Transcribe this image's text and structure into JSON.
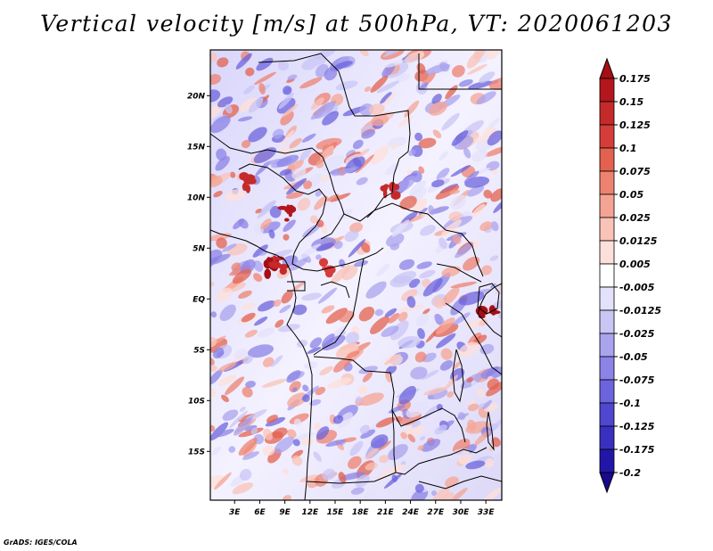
{
  "title": "Vertical velocity [m/s] at 500hPa, VT: 2020061203",
  "credit": "GrADS: IGES/COLA",
  "map": {
    "lat_labels": [
      "20N",
      "15N",
      "10N",
      "5N",
      "EQ",
      "5S",
      "10S",
      "15S"
    ],
    "lon_labels": [
      "3E",
      "6E",
      "9E",
      "12E",
      "15E",
      "18E",
      "21E",
      "24E",
      "27E",
      "30E",
      "33E"
    ],
    "lat_values": [
      20,
      15,
      10,
      5,
      0,
      -5,
      -10,
      -15
    ],
    "lon_values": [
      3,
      6,
      9,
      12,
      15,
      18,
      21,
      24,
      27,
      30,
      33
    ],
    "extent": {
      "lon_min": 0.1,
      "lon_max": 34.9,
      "lat_min": -19.8,
      "lat_max": 24.5
    }
  },
  "colorbar": {
    "labels": [
      "0.175",
      "0.15",
      "0.125",
      "0.1",
      "0.075",
      "0.05",
      "0.025",
      "0.0125",
      "0.005",
      "-0.005",
      "-0.0125",
      "-0.025",
      "-0.05",
      "-0.075",
      "-0.1",
      "-0.125",
      "-0.175",
      "-0.2"
    ],
    "colors": [
      "#a50f15",
      "#b3161d",
      "#c52a2a",
      "#d63d3a",
      "#e3614f",
      "#ee8270",
      "#f5a494",
      "#fac3b8",
      "#fde0da",
      "#ffffff",
      "#e4e2fb",
      "#c9c5f5",
      "#aaa3ee",
      "#8b83e6",
      "#6c64dc",
      "#4f47cf",
      "#3930c0",
      "#2116a8",
      "#180a8c"
    ]
  }
}
